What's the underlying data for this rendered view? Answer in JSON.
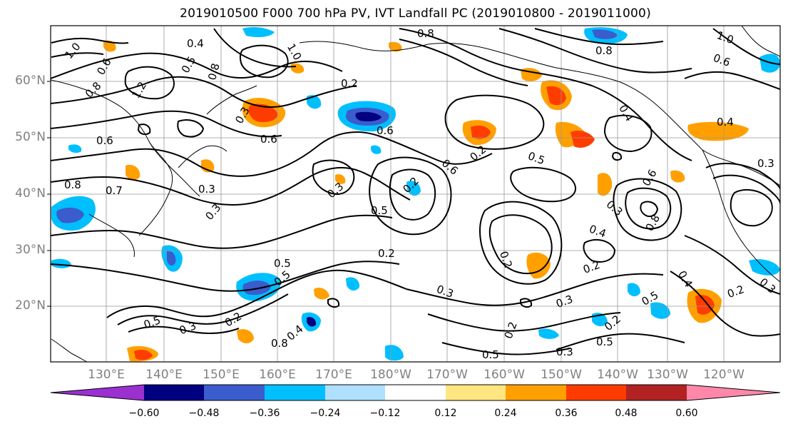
{
  "title": "2019010500 F000 700 hPa PV, IVT Landfall PC (2019010800 - 2019011000)",
  "lat_labels": [
    "60°N",
    "50°N",
    "40°N",
    "30°N",
    "20°N"
  ],
  "lon_labels": [
    "130°E",
    "140°E",
    "150°E",
    "160°E",
    "170°E",
    "180°W",
    "170°W",
    "160°W",
    "150°W",
    "140°W",
    "130°W",
    "120°W"
  ],
  "colorbar": {
    "ticks": [
      "−0.60",
      "−0.48",
      "−0.36",
      "−0.24",
      "−0.12",
      "0.12",
      "0.24",
      "0.36",
      "0.48",
      "0.60"
    ],
    "colors": [
      "#9b30d0",
      "#000080",
      "#3a5ccc",
      "#00bfff",
      "#b0e0ff",
      "#ffffff",
      "#ffe680",
      "#ffa000",
      "#ff3c00",
      "#b22222",
      "#ff88aa"
    ]
  },
  "contour_labels": [
    "0.4",
    "0.8",
    "1.0",
    "0.8",
    "0.8",
    "0.6",
    "1.0",
    "0.5",
    "0.8",
    "0.2",
    "0.3",
    "0.6",
    "0.6",
    "0.2",
    "0.5",
    "1.2",
    "0.6",
    "0.3",
    "0.8",
    "0.7",
    "0.3",
    "0.3",
    "0.6",
    "0.5",
    "0.2",
    "0.4",
    "0.3",
    "0.5",
    "0.2",
    "0.5",
    "0.3",
    "0.2",
    "0.3",
    "0.2",
    "0.2",
    "0.5",
    "0.3",
    "0.5",
    "0.8",
    "0.4",
    "0.2",
    "0.3",
    "0.5",
    "0.2",
    "0.2",
    "0.4",
    "0.5",
    "0.3",
    "0.6",
    "0.8",
    "0.4",
    "1.0",
    "0.6",
    "0.4",
    "0.3"
  ],
  "colors": {
    "contour": "#000000",
    "grid": "#999999",
    "coast": "#000000",
    "axis_label": "#808080"
  }
}
